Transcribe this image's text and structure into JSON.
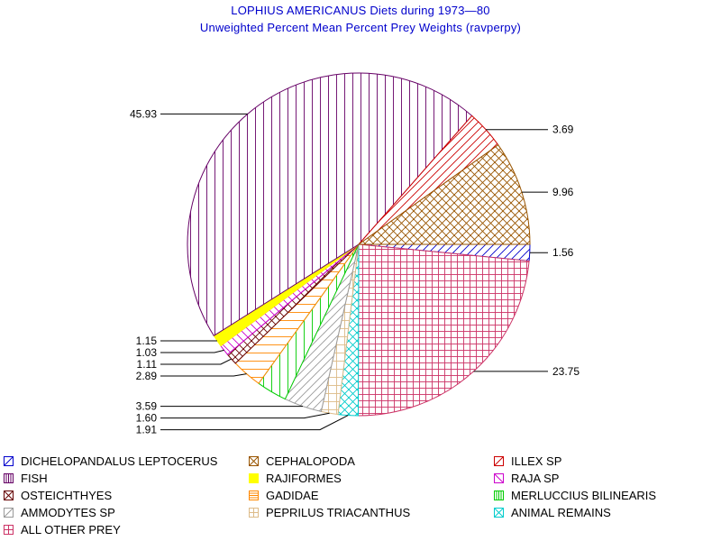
{
  "chart_data": {
    "type": "pie",
    "title": "LOPHIUS AMERICANUS Diets during 1973—80",
    "subtitle": "Unweighted Percent Mean Percent Prey  Weights (ravperpy)",
    "slices": [
      {
        "name": "DICHELOPANDALUS LEPTOCERUS",
        "value": 1.56,
        "label": "1.56",
        "color": "#0000cc",
        "pattern": "diag-right"
      },
      {
        "name": "ALL OTHER PREY",
        "value": 23.75,
        "label": "23.75",
        "color": "#cc3366",
        "pattern": "crosshatch"
      },
      {
        "name": "ANIMAL REMAINS",
        "value": 1.91,
        "label": "1.91",
        "color": "#00cccc",
        "pattern": "diag-cross"
      },
      {
        "name": "PEPRILUS TRIACANTHUS",
        "value": 1.6,
        "label": "1.60",
        "color": "#ddbb88",
        "pattern": "grid"
      },
      {
        "name": "AMMODYTES SP",
        "value": 3.59,
        "label": "3.59",
        "color": "#999999",
        "pattern": "diag-right"
      },
      {
        "name": "MERLUCCIUS BILINEARIS",
        "value": 2.89,
        "label": "",
        "color": "#00cc00",
        "pattern": "vertical"
      },
      {
        "name": "GADIDAE",
        "value": 2.89,
        "label": "2.89",
        "color": "#ff8800",
        "pattern": "horizontal"
      },
      {
        "name": "OSTEICHTHYES",
        "value": 1.11,
        "label": "1.11",
        "color": "#660000",
        "pattern": "diag-cross"
      },
      {
        "name": "RAJA SP",
        "value": 1.03,
        "label": "1.03",
        "color": "#cc00cc",
        "pattern": "diag-left"
      },
      {
        "name": "RAJIFORMES",
        "value": 1.15,
        "label": "1.15",
        "color": "#ffff00",
        "pattern": "solid"
      },
      {
        "name": "FISH",
        "value": 45.93,
        "label": "45.93",
        "color": "#660066",
        "pattern": "vertical"
      },
      {
        "name": "ILLEX SP",
        "value": 3.69,
        "label": "3.69",
        "color": "#cc0000",
        "pattern": "diag-right"
      },
      {
        "name": "CEPHALOPODA",
        "value": 9.96,
        "label": "9.96",
        "color": "#995500",
        "pattern": "diag-cross"
      }
    ],
    "legend": [
      "DICHELOPANDALUS LEPTOCERUS",
      "CEPHALOPODA",
      "ILLEX SP",
      "FISH",
      "RAJIFORMES",
      "RAJA SP",
      "OSTEICHTHYES",
      "GADIDAE",
      "MERLUCCIUS BILINEARIS",
      "AMMODYTES SP",
      "PEPRILUS TRIACANTHUS",
      "ANIMAL REMAINS",
      "ALL OTHER PREY"
    ],
    "legend_placement": "bottom",
    "start_angle_deg": 0,
    "direction": "clockwise"
  }
}
